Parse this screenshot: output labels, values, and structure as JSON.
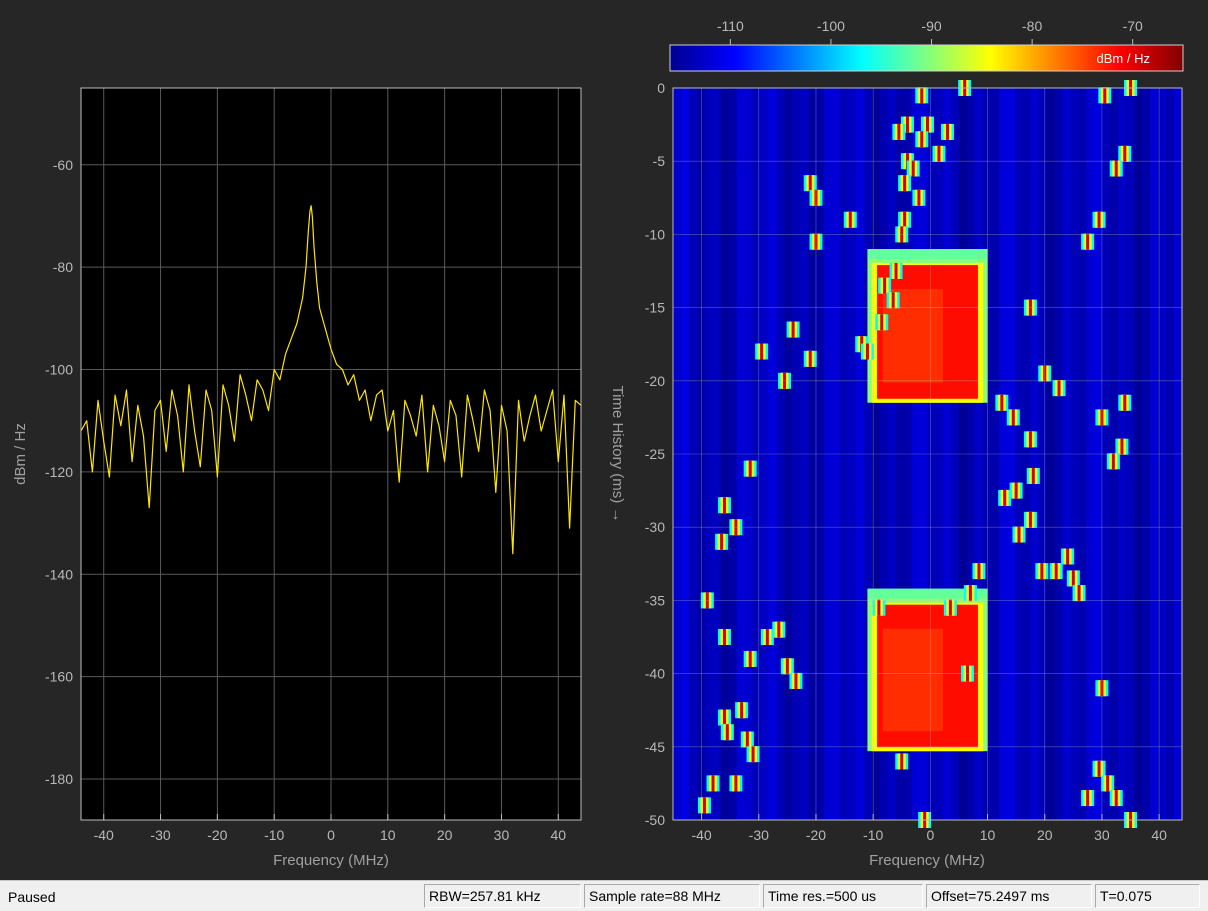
{
  "window": {
    "status": "Paused",
    "status_cells": [
      "RBW=257.81 kHz",
      "Sample rate=88 MHz",
      "Time res.=500 us",
      "Offset=75.2497 ms",
      "T=0.075"
    ]
  },
  "colors": {
    "figure_bg": "#262626",
    "axes_bg": "#000000",
    "trace": "#ffe600",
    "grid": "#5a5a5a",
    "tick_text": "#b8b8b8"
  },
  "chart_data": [
    {
      "type": "line",
      "name": "spectrum",
      "xlabel": "Frequency (MHz)",
      "ylabel": "dBm / Hz",
      "xlim": [
        -44,
        44
      ],
      "ylim": [
        -188,
        -45
      ],
      "xticks": [
        -40,
        -30,
        -20,
        -10,
        0,
        10,
        20,
        30,
        40
      ],
      "yticks": [
        -60,
        -80,
        -100,
        -120,
        -140,
        -160,
        -180
      ],
      "grid": true,
      "series": [
        {
          "color": "#ffe600",
          "peak": {
            "x": -3.5,
            "y": -68
          },
          "points": [
            [
              -44,
              -112
            ],
            [
              -43,
              -110
            ],
            [
              -42,
              -120
            ],
            [
              -41,
              -106
            ],
            [
              -40,
              -114
            ],
            [
              -39,
              -121
            ],
            [
              -38,
              -105
            ],
            [
              -37,
              -111
            ],
            [
              -36,
              -104
            ],
            [
              -35,
              -118
            ],
            [
              -34,
              -107
            ],
            [
              -33,
              -113
            ],
            [
              -32,
              -127
            ],
            [
              -31,
              -108
            ],
            [
              -30,
              -106
            ],
            [
              -29,
              -116
            ],
            [
              -28,
              -104
            ],
            [
              -27,
              -109
            ],
            [
              -26,
              -120
            ],
            [
              -25,
              -103
            ],
            [
              -24,
              -112
            ],
            [
              -23,
              -119
            ],
            [
              -22,
              -104
            ],
            [
              -21,
              -108
            ],
            [
              -20,
              -121
            ],
            [
              -19,
              -103
            ],
            [
              -18,
              -107
            ],
            [
              -17,
              -114
            ],
            [
              -16,
              -101
            ],
            [
              -15,
              -105
            ],
            [
              -14,
              -110
            ],
            [
              -13,
              -102
            ],
            [
              -12,
              -104
            ],
            [
              -11,
              -108
            ],
            [
              -10,
              -100
            ],
            [
              -9,
              -102
            ],
            [
              -8,
              -97
            ],
            [
              -7,
              -94
            ],
            [
              -6,
              -91
            ],
            [
              -5,
              -86
            ],
            [
              -4.4,
              -80
            ],
            [
              -4,
              -73
            ],
            [
              -3.7,
              -69
            ],
            [
              -3.5,
              -68
            ],
            [
              -3.3,
              -70
            ],
            [
              -3,
              -76
            ],
            [
              -2.5,
              -83
            ],
            [
              -2,
              -88
            ],
            [
              -1,
              -92
            ],
            [
              0,
              -96
            ],
            [
              1,
              -99
            ],
            [
              2,
              -100
            ],
            [
              3,
              -103
            ],
            [
              4,
              -101
            ],
            [
              5,
              -106
            ],
            [
              6,
              -104
            ],
            [
              7,
              -110
            ],
            [
              8,
              -105
            ],
            [
              9,
              -104
            ],
            [
              10,
              -112
            ],
            [
              11,
              -108
            ],
            [
              12,
              -122
            ],
            [
              13,
              -106
            ],
            [
              14,
              -109
            ],
            [
              15,
              -113
            ],
            [
              16,
              -105
            ],
            [
              17,
              -120
            ],
            [
              18,
              -107
            ],
            [
              19,
              -111
            ],
            [
              20,
              -118
            ],
            [
              21,
              -106
            ],
            [
              22,
              -109
            ],
            [
              23,
              -121
            ],
            [
              24,
              -105
            ],
            [
              25,
              -110
            ],
            [
              26,
              -116
            ],
            [
              27,
              -104
            ],
            [
              28,
              -108
            ],
            [
              29,
              -124
            ],
            [
              30,
              -107
            ],
            [
              31,
              -112
            ],
            [
              32,
              -136
            ],
            [
              33,
              -106
            ],
            [
              34,
              -114
            ],
            [
              35,
              -109
            ],
            [
              36,
              -105
            ],
            [
              37,
              -112
            ],
            [
              38,
              -108
            ],
            [
              39,
              -104
            ],
            [
              40,
              -118
            ],
            [
              41,
              -105
            ],
            [
              42,
              -131
            ],
            [
              43,
              -106
            ],
            [
              44,
              -107
            ]
          ]
        }
      ]
    },
    {
      "type": "heatmap",
      "name": "spectrogram",
      "xlabel": "Frequency (MHz)",
      "ylabel": "Time History (ms)  →",
      "xlim": [
        -45,
        44
      ],
      "ylim": [
        -50,
        0
      ],
      "xticks": [
        -40,
        -30,
        -20,
        -10,
        0,
        10,
        20,
        30,
        40
      ],
      "yticks": [
        0,
        -5,
        -10,
        -15,
        -20,
        -25,
        -30,
        -35,
        -40,
        -45,
        -50
      ],
      "colorbar": {
        "label": "dBm / Hz",
        "ticks": [
          -110,
          -100,
          -90,
          -80,
          -70
        ],
        "range": [
          -116,
          -65
        ],
        "colormap": "jet"
      },
      "background_level": -113,
      "wideband_bursts": [
        {
          "f_start": -11,
          "f_end": 10,
          "t_top": -11,
          "t_bottom": -21.5,
          "level": -72
        },
        {
          "f_start": -11,
          "f_end": 10,
          "t_top": -34.2,
          "t_bottom": -45.3,
          "level": -72
        }
      ],
      "hops": [
        [
          -1.5,
          -0.5
        ],
        [
          6,
          0
        ],
        [
          35,
          0
        ],
        [
          30.5,
          -0.5
        ],
        [
          -4,
          -2.5
        ],
        [
          -0.5,
          -2.5
        ],
        [
          -1.5,
          -3.5
        ],
        [
          -5.5,
          -3
        ],
        [
          3,
          -3
        ],
        [
          1.5,
          -4.5
        ],
        [
          -4,
          -5
        ],
        [
          34,
          -4.5
        ],
        [
          32.5,
          -5.5
        ],
        [
          -3,
          -5.5
        ],
        [
          -4.5,
          -6.5
        ],
        [
          -21,
          -6.5
        ],
        [
          -2,
          -7.5
        ],
        [
          -20,
          -7.5
        ],
        [
          -4.5,
          -9
        ],
        [
          -14,
          -9
        ],
        [
          -5,
          -10
        ],
        [
          29.5,
          -9
        ],
        [
          -20,
          -10.5
        ],
        [
          27.5,
          -10.5
        ],
        [
          -6,
          -12.5
        ],
        [
          -8,
          -13.5
        ],
        [
          -6.5,
          -14.5
        ],
        [
          17.5,
          -15
        ],
        [
          -8.5,
          -16
        ],
        [
          -12,
          -17.5
        ],
        [
          -24,
          -16.5
        ],
        [
          -29.5,
          -18
        ],
        [
          -21,
          -18.5
        ],
        [
          -25.5,
          -20
        ],
        [
          -11,
          -18
        ],
        [
          20,
          -19.5
        ],
        [
          22.5,
          -20.5
        ],
        [
          34,
          -21.5
        ],
        [
          12.5,
          -21.5
        ],
        [
          14.5,
          -22.5
        ],
        [
          30,
          -22.5
        ],
        [
          17.5,
          -24
        ],
        [
          33.5,
          -24.5
        ],
        [
          32,
          -25.5
        ],
        [
          -31.5,
          -26
        ],
        [
          18,
          -26.5
        ],
        [
          13,
          -28
        ],
        [
          15,
          -27.5
        ],
        [
          -36,
          -28.5
        ],
        [
          -34,
          -30
        ],
        [
          -36.5,
          -31
        ],
        [
          15.5,
          -30.5
        ],
        [
          17.5,
          -29.5
        ],
        [
          24,
          -32
        ],
        [
          19.5,
          -33
        ],
        [
          25,
          -33.5
        ],
        [
          22,
          -33
        ],
        [
          8.5,
          -33
        ],
        [
          26,
          -34.5
        ],
        [
          7,
          -34.5
        ],
        [
          -39,
          -35
        ],
        [
          -9,
          -35.5
        ],
        [
          3.5,
          -35.5
        ],
        [
          -36,
          -37.5
        ],
        [
          -26.5,
          -37
        ],
        [
          -28.5,
          -37.5
        ],
        [
          -31.5,
          -39
        ],
        [
          -25,
          -39.5
        ],
        [
          -23.5,
          -40.5
        ],
        [
          6.5,
          -40
        ],
        [
          30,
          -41
        ],
        [
          -36,
          -43
        ],
        [
          -35.5,
          -44
        ],
        [
          -33,
          -42.5
        ],
        [
          -32,
          -44.5
        ],
        [
          -31,
          -45.5
        ],
        [
          -5,
          -46
        ],
        [
          -38,
          -47.5
        ],
        [
          -34,
          -47.5
        ],
        [
          29.5,
          -46.5
        ],
        [
          31,
          -47.5
        ],
        [
          27.5,
          -48.5
        ],
        [
          -39.5,
          -49
        ],
        [
          -1,
          -50
        ],
        [
          32.5,
          -48.5
        ],
        [
          35,
          -50
        ]
      ]
    }
  ]
}
